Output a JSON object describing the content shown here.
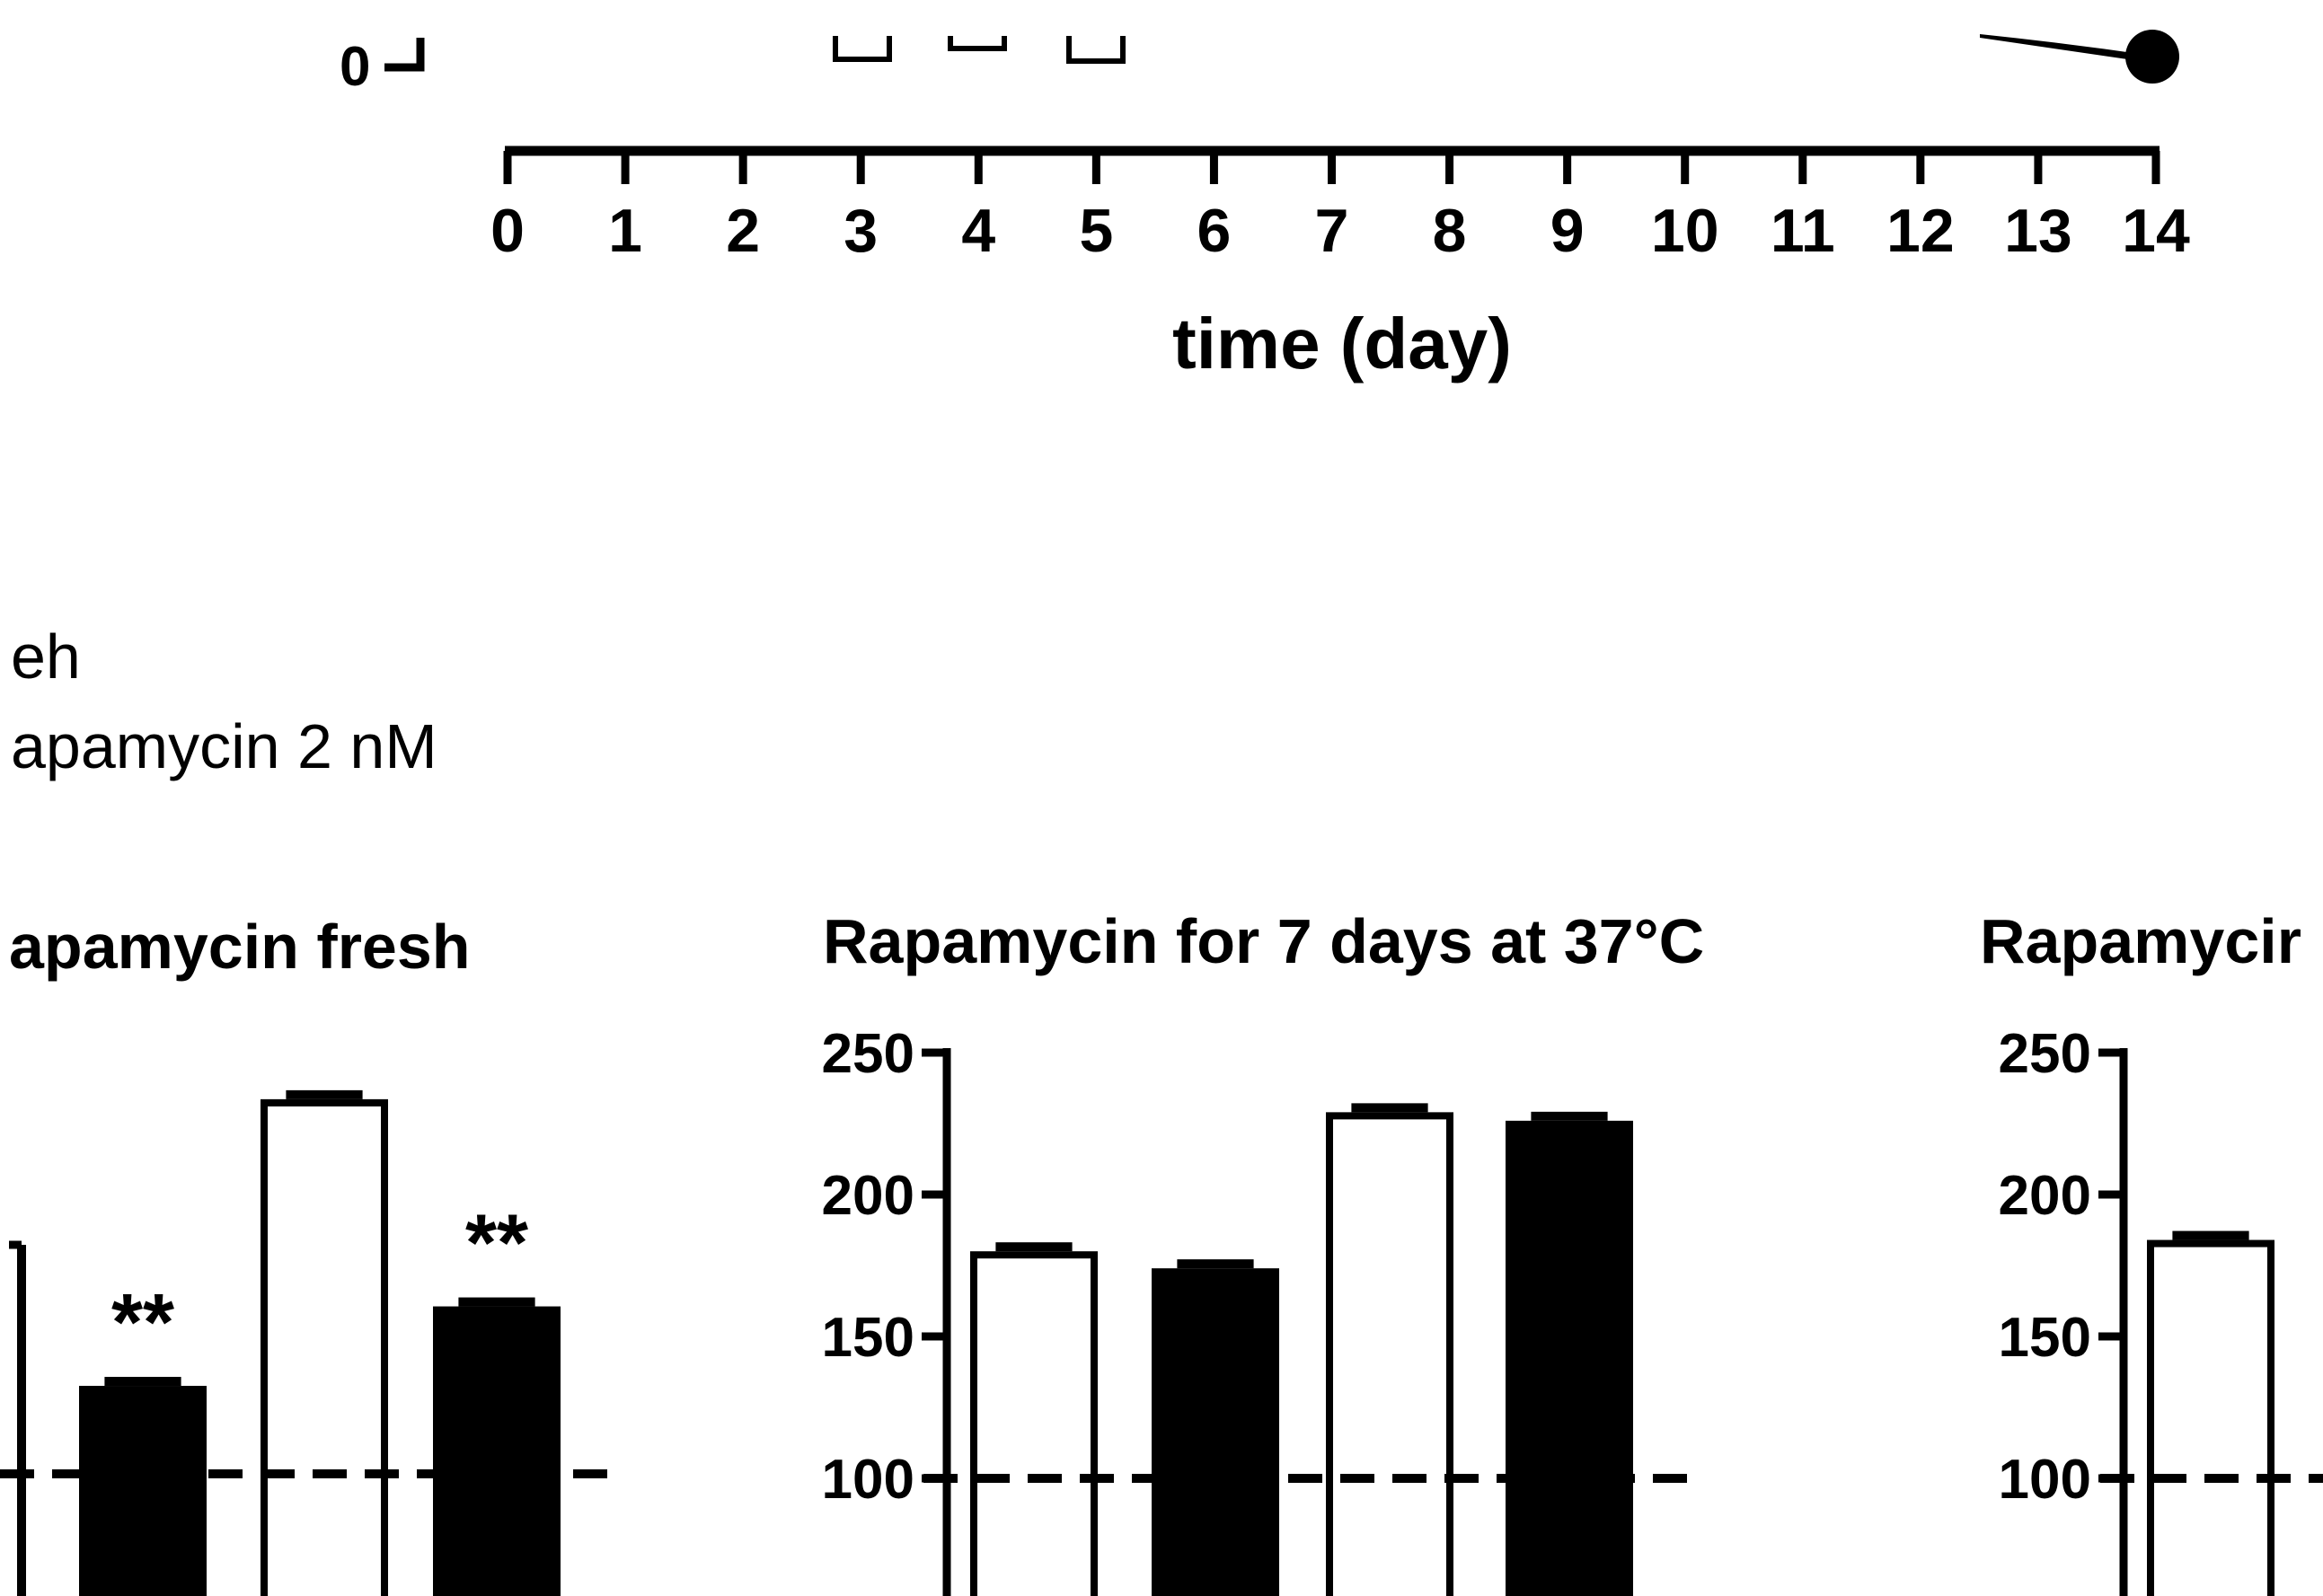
{
  "chart_data": [
    {
      "type": "line",
      "panel": "top-timeline",
      "xlabel": "time (day)",
      "x_ticks": [
        0,
        1,
        2,
        3,
        4,
        5,
        6,
        7,
        8,
        9,
        10,
        11,
        12,
        13,
        14
      ],
      "xlim": [
        0,
        14
      ],
      "y_ticks_visible": [
        "0"
      ],
      "treatment_days_open_squares": [
        3,
        4,
        5
      ],
      "series_end_point": {
        "x": 14,
        "marker": "filled-circle"
      }
    },
    {
      "type": "bar",
      "panel": "left",
      "title": "apamycin fresh",
      "significance": [
        "**",
        "**"
      ],
      "bars": [
        {
          "fill": "black",
          "value": 131,
          "marker": "**"
        },
        {
          "fill": "white",
          "value": 232
        },
        {
          "fill": "black",
          "value": 159,
          "marker": "**"
        }
      ],
      "reference_line": 100,
      "ylim": [
        50,
        250
      ]
    },
    {
      "type": "bar",
      "panel": "middle",
      "title": "Rapamycin for 7 days at 37°C",
      "y_ticks": [
        "250",
        "200",
        "150",
        "100"
      ],
      "ylim": [
        50,
        250
      ],
      "bars": [
        {
          "fill": "white",
          "value": 180
        },
        {
          "fill": "black",
          "value": 174
        },
        {
          "fill": "white",
          "value": 229
        },
        {
          "fill": "black",
          "value": 226
        }
      ],
      "reference_line": 100
    },
    {
      "type": "bar",
      "panel": "right",
      "title": "Rapamycir",
      "y_ticks": [
        "250",
        "200",
        "150",
        "100"
      ],
      "ylim": [
        50,
        250
      ],
      "bars": [
        {
          "fill": "white",
          "value": 184
        }
      ],
      "reference_line": 100
    }
  ],
  "legend": {
    "entries": [
      "eh",
      "apamycin 2 nM"
    ]
  },
  "colors": {
    "ink": "#000000",
    "background": "#ffffff"
  }
}
